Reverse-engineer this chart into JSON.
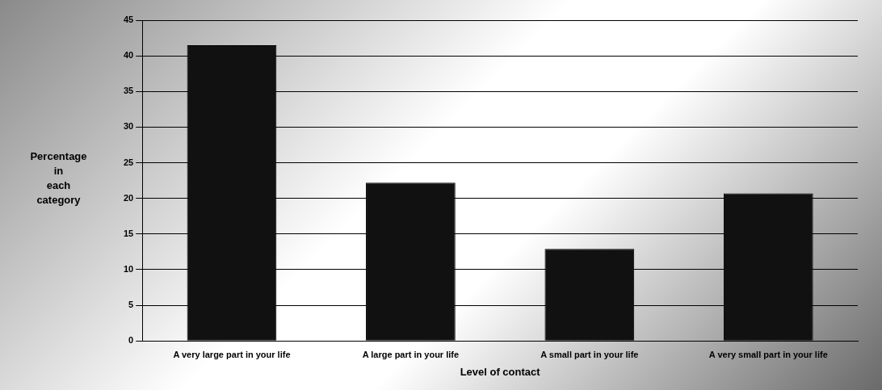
{
  "chart_data": {
    "type": "bar",
    "xlabel": "Level of contact",
    "ylabel": "Percentage in each category",
    "categories": [
      "A very large part in your life",
      "A large part in your life",
      "A small part in your life",
      "A very small part in your life"
    ],
    "values": [
      41.5,
      22.2,
      12.9,
      20.7
    ],
    "color": "#111111",
    "ylim": [
      0,
      45
    ],
    "yticks": [
      0,
      5,
      10,
      15,
      20,
      25,
      30,
      35,
      40,
      45
    ],
    "grid": "y",
    "legend": false
  }
}
